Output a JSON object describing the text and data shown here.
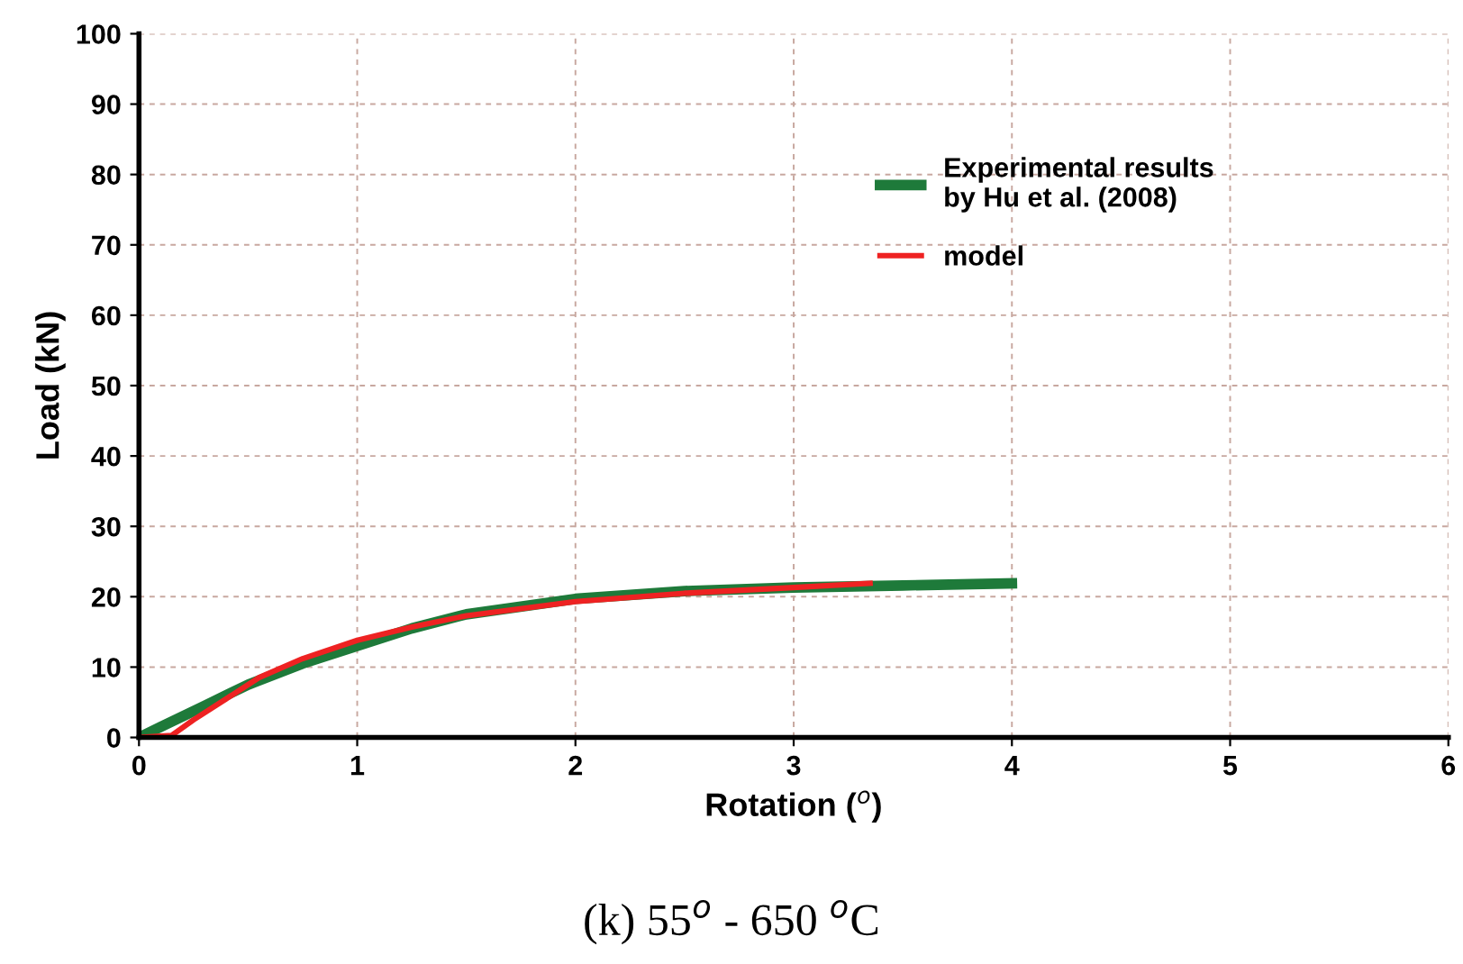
{
  "chart_data": {
    "type": "line",
    "xlabel": "Rotation ($^{o}$)",
    "ylabel": "Load (kN)",
    "xlim": [
      0,
      6
    ],
    "ylim": [
      0,
      100
    ],
    "xticks": [
      0,
      1,
      2,
      3,
      4,
      5,
      6
    ],
    "yticks": [
      0,
      10,
      20,
      30,
      40,
      50,
      60,
      70,
      80,
      90,
      100
    ],
    "grid": true,
    "legend": "top right",
    "marker": "none",
    "line_style": "solid",
    "annotations": [
      "(k) 55$^{o}$ - 650 $^{o}$C"
    ],
    "series": [
      {
        "name": "Experimental results\nby Hu et al. (2008)",
        "color": "#1e7a3a",
        "x": [
          0,
          0.1,
          0.3,
          0.5,
          0.75,
          1,
          1.25,
          1.5,
          2,
          2.5,
          3,
          3.5,
          4
        ],
        "values": [
          0,
          1.5,
          4.5,
          7.5,
          10.5,
          13,
          15.5,
          17.5,
          19.7,
          20.8,
          21.3,
          21.6,
          21.9
        ]
      },
      {
        "name": "model",
        "color": "#ee2222",
        "x": [
          0,
          0.15,
          0.25,
          0.4,
          0.55,
          0.75,
          1,
          1.25,
          1.5,
          2,
          2.5,
          3,
          3.35
        ],
        "values": [
          0,
          0.3,
          2.5,
          5.5,
          8.5,
          11.2,
          13.8,
          15.7,
          17.3,
          19.3,
          20.5,
          21.3,
          21.9
        ]
      }
    ]
  }
}
